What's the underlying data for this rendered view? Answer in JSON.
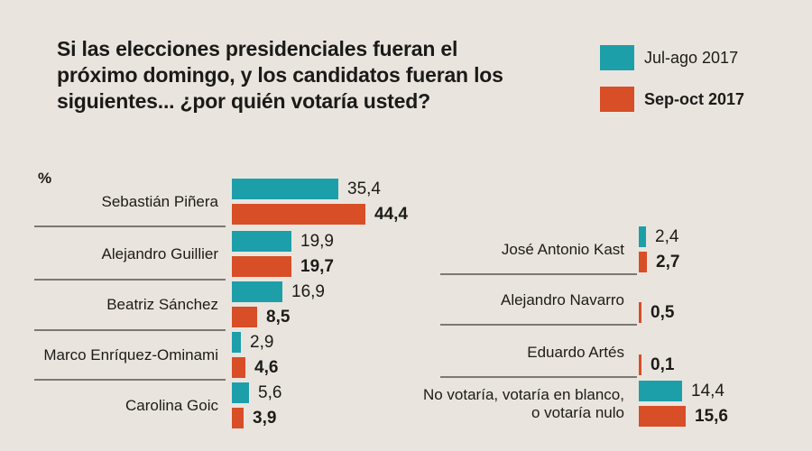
{
  "title": "Si las elecciones presidenciales fueran el próximo domingo, y los candidatos fueran los siguientes... ¿por quién votaría usted?",
  "unit_label": "%",
  "legend": {
    "jul_ago": {
      "label": "Jul-ago 2017",
      "color": "#1d9faa"
    },
    "sep_oct": {
      "label": "Sep-oct 2017",
      "color": "#d84e27"
    }
  },
  "chart_data": {
    "type": "bar",
    "orientation": "horizontal",
    "value_unit": "percent",
    "series": [
      "Jul-ago 2017",
      "Sep-oct 2017"
    ],
    "colors": {
      "jul_ago": "#1d9faa",
      "sep_oct": "#d84e27"
    },
    "legend_position": "top-right",
    "grid": false,
    "xlim": [
      0,
      50
    ],
    "left": {
      "rows": [
        {
          "label": "Sebastián Piñera",
          "jul_ago": 35.4,
          "jul_ago_label": "35,4",
          "sep_oct": 44.4,
          "sep_oct_label": "44,4"
        },
        {
          "label": "Alejandro Guillier",
          "jul_ago": 19.9,
          "jul_ago_label": "19,9",
          "sep_oct": 19.7,
          "sep_oct_label": "19,7"
        },
        {
          "label": "Beatriz Sánchez",
          "jul_ago": 16.9,
          "jul_ago_label": "16,9",
          "sep_oct": 8.5,
          "sep_oct_label": "8,5"
        },
        {
          "label": "Marco Enríquez-Ominami",
          "jul_ago": 2.9,
          "jul_ago_label": "2,9",
          "sep_oct": 4.6,
          "sep_oct_label": "4,6"
        },
        {
          "label": "Carolina Goic",
          "jul_ago": 5.6,
          "jul_ago_label": "5,6",
          "sep_oct": 3.9,
          "sep_oct_label": "3,9"
        }
      ]
    },
    "right": {
      "rows": [
        {
          "label": "José Antonio Kast",
          "jul_ago": 2.4,
          "jul_ago_label": "2,4",
          "sep_oct": 2.7,
          "sep_oct_label": "2,7"
        },
        {
          "label": "Alejandro Navarro",
          "jul_ago": null,
          "jul_ago_label": null,
          "sep_oct": 0.5,
          "sep_oct_label": "0,5"
        },
        {
          "label": "Eduardo Artés",
          "jul_ago": null,
          "jul_ago_label": null,
          "sep_oct": 0.1,
          "sep_oct_label": "0,1"
        },
        {
          "label": "No votaría, votaría en blanco, o votaría nulo",
          "jul_ago": 14.4,
          "jul_ago_label": "14,4",
          "sep_oct": 15.6,
          "sep_oct_label": "15,6"
        }
      ]
    }
  }
}
